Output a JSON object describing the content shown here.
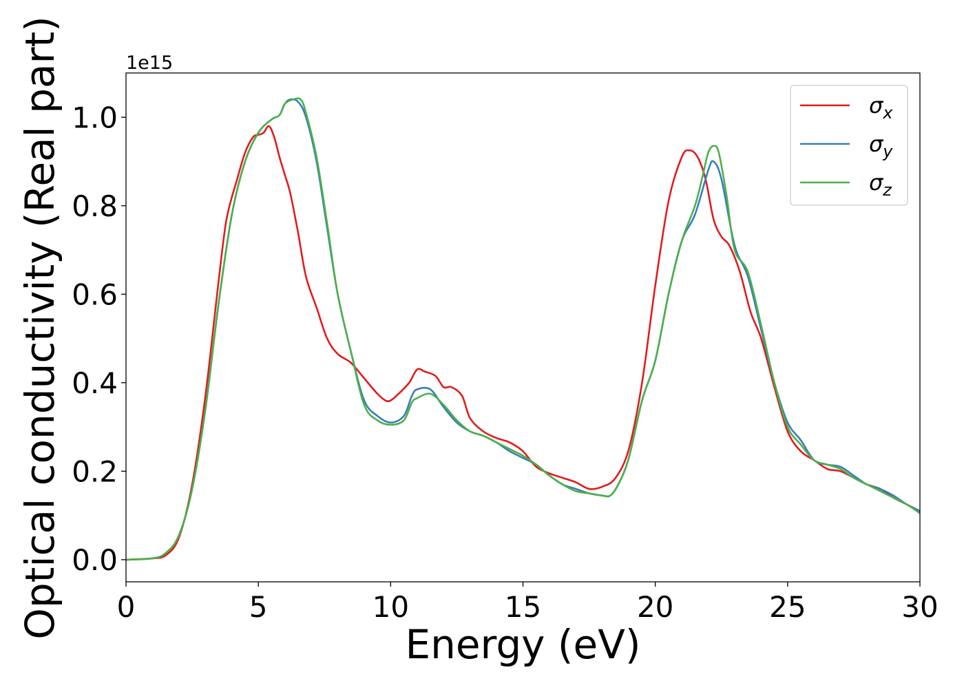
{
  "chart_data": {
    "type": "line",
    "title": "",
    "xlabel": "Energy (eV)",
    "ylabel": "Optical conductivity (Real part)",
    "y_offset_label": "1e15",
    "y_scale": 1000000000000000.0,
    "xlim": [
      0,
      30
    ],
    "ylim": [
      -0.05,
      1.1
    ],
    "grid": false,
    "legend_position": "top-right",
    "x_ticks": [
      0,
      5,
      10,
      15,
      20,
      25,
      30
    ],
    "x_tick_labels": [
      "0",
      "5",
      "10",
      "15",
      "20",
      "25",
      "30"
    ],
    "y_ticks": [
      0.0,
      0.2,
      0.4,
      0.6,
      0.8,
      1.0
    ],
    "y_tick_labels": [
      "0.0",
      "0.2",
      "0.4",
      "0.6",
      "0.8",
      "1.0"
    ],
    "series": [
      {
        "name": "σx",
        "base": "σ",
        "sub": "x",
        "color": "#e41a1c",
        "points": [
          [
            0,
            0.0
          ],
          [
            1,
            0.003
          ],
          [
            1.5,
            0.01
          ],
          [
            2,
            0.05
          ],
          [
            2.5,
            0.17
          ],
          [
            3,
            0.37
          ],
          [
            3.5,
            0.63
          ],
          [
            3.8,
            0.77
          ],
          [
            4.2,
            0.86
          ],
          [
            4.5,
            0.92
          ],
          [
            4.8,
            0.955
          ],
          [
            5.0,
            0.96
          ],
          [
            5.2,
            0.965
          ],
          [
            5.4,
            0.98
          ],
          [
            5.6,
            0.955
          ],
          [
            5.8,
            0.91
          ],
          [
            6.0,
            0.87
          ],
          [
            6.2,
            0.83
          ],
          [
            6.5,
            0.74
          ],
          [
            6.8,
            0.64
          ],
          [
            7.2,
            0.57
          ],
          [
            7.6,
            0.5
          ],
          [
            8.0,
            0.465
          ],
          [
            8.5,
            0.445
          ],
          [
            9.0,
            0.41
          ],
          [
            9.5,
            0.375
          ],
          [
            9.8,
            0.36
          ],
          [
            10.0,
            0.36
          ],
          [
            10.3,
            0.375
          ],
          [
            10.7,
            0.4
          ],
          [
            11.0,
            0.43
          ],
          [
            11.3,
            0.425
          ],
          [
            11.7,
            0.415
          ],
          [
            12.0,
            0.39
          ],
          [
            12.3,
            0.39
          ],
          [
            12.7,
            0.37
          ],
          [
            13.0,
            0.32
          ],
          [
            13.5,
            0.29
          ],
          [
            14.0,
            0.275
          ],
          [
            14.5,
            0.265
          ],
          [
            15.0,
            0.245
          ],
          [
            15.5,
            0.21
          ],
          [
            16.0,
            0.195
          ],
          [
            16.5,
            0.185
          ],
          [
            17.0,
            0.175
          ],
          [
            17.5,
            0.16
          ],
          [
            18.0,
            0.165
          ],
          [
            18.5,
            0.185
          ],
          [
            19.0,
            0.25
          ],
          [
            19.5,
            0.4
          ],
          [
            20.0,
            0.62
          ],
          [
            20.5,
            0.81
          ],
          [
            21.0,
            0.91
          ],
          [
            21.3,
            0.925
          ],
          [
            21.6,
            0.91
          ],
          [
            21.9,
            0.86
          ],
          [
            22.2,
            0.77
          ],
          [
            22.5,
            0.73
          ],
          [
            22.8,
            0.71
          ],
          [
            23.2,
            0.65
          ],
          [
            23.6,
            0.56
          ],
          [
            24.0,
            0.5
          ],
          [
            24.5,
            0.39
          ],
          [
            25.0,
            0.29
          ],
          [
            25.5,
            0.245
          ],
          [
            26.0,
            0.225
          ],
          [
            26.5,
            0.205
          ],
          [
            27.0,
            0.2
          ],
          [
            27.5,
            0.185
          ],
          [
            28.0,
            0.17
          ],
          [
            28.5,
            0.16
          ],
          [
            29.0,
            0.14
          ],
          [
            29.5,
            0.125
          ],
          [
            30,
            0.11
          ]
        ]
      },
      {
        "name": "σy",
        "base": "σ",
        "sub": "y",
        "color": "#377eb8",
        "points": [
          [
            0,
            0.0
          ],
          [
            1,
            0.003
          ],
          [
            1.5,
            0.015
          ],
          [
            2,
            0.055
          ],
          [
            2.5,
            0.16
          ],
          [
            3,
            0.34
          ],
          [
            3.5,
            0.58
          ],
          [
            4.0,
            0.78
          ],
          [
            4.5,
            0.9
          ],
          [
            5.0,
            0.965
          ],
          [
            5.5,
            0.995
          ],
          [
            5.8,
            1.005
          ],
          [
            6.0,
            1.03
          ],
          [
            6.2,
            1.04
          ],
          [
            6.5,
            1.035
          ],
          [
            6.8,
            1.0
          ],
          [
            7.2,
            0.9
          ],
          [
            7.6,
            0.75
          ],
          [
            8.0,
            0.6
          ],
          [
            8.5,
            0.47
          ],
          [
            9.0,
            0.36
          ],
          [
            9.5,
            0.325
          ],
          [
            10.0,
            0.31
          ],
          [
            10.5,
            0.325
          ],
          [
            10.8,
            0.37
          ],
          [
            11.0,
            0.385
          ],
          [
            11.5,
            0.385
          ],
          [
            12.0,
            0.345
          ],
          [
            12.5,
            0.31
          ],
          [
            13.0,
            0.29
          ],
          [
            13.5,
            0.28
          ],
          [
            14.0,
            0.265
          ],
          [
            14.5,
            0.245
          ],
          [
            15.0,
            0.23
          ],
          [
            15.5,
            0.215
          ],
          [
            16.0,
            0.19
          ],
          [
            16.5,
            0.17
          ],
          [
            17.0,
            0.16
          ],
          [
            17.5,
            0.15
          ],
          [
            18.0,
            0.145
          ],
          [
            18.3,
            0.145
          ],
          [
            18.6,
            0.17
          ],
          [
            19.0,
            0.23
          ],
          [
            19.5,
            0.36
          ],
          [
            20.0,
            0.45
          ],
          [
            20.5,
            0.6
          ],
          [
            21.0,
            0.72
          ],
          [
            21.5,
            0.78
          ],
          [
            22.0,
            0.88
          ],
          [
            22.2,
            0.9
          ],
          [
            22.5,
            0.86
          ],
          [
            23.0,
            0.71
          ],
          [
            23.5,
            0.64
          ],
          [
            24.0,
            0.52
          ],
          [
            24.5,
            0.4
          ],
          [
            25.0,
            0.31
          ],
          [
            25.5,
            0.27
          ],
          [
            26.0,
            0.225
          ],
          [
            26.5,
            0.215
          ],
          [
            27.0,
            0.21
          ],
          [
            27.5,
            0.19
          ],
          [
            28.0,
            0.17
          ],
          [
            28.5,
            0.16
          ],
          [
            29.0,
            0.145
          ],
          [
            29.5,
            0.125
          ],
          [
            30,
            0.11
          ]
        ]
      },
      {
        "name": "σz",
        "base": "σ",
        "sub": "z",
        "color": "#4daf4a",
        "points": [
          [
            0,
            0.0
          ],
          [
            1,
            0.003
          ],
          [
            1.5,
            0.015
          ],
          [
            2,
            0.055
          ],
          [
            2.5,
            0.16
          ],
          [
            3,
            0.34
          ],
          [
            3.5,
            0.58
          ],
          [
            4.0,
            0.78
          ],
          [
            4.5,
            0.9
          ],
          [
            5.0,
            0.965
          ],
          [
            5.5,
            0.995
          ],
          [
            5.8,
            1.005
          ],
          [
            6.0,
            1.03
          ],
          [
            6.3,
            1.04
          ],
          [
            6.6,
            1.04
          ],
          [
            6.8,
            1.01
          ],
          [
            7.2,
            0.91
          ],
          [
            7.6,
            0.76
          ],
          [
            8.0,
            0.6
          ],
          [
            8.5,
            0.47
          ],
          [
            9.0,
            0.35
          ],
          [
            9.5,
            0.315
          ],
          [
            10.0,
            0.305
          ],
          [
            10.5,
            0.315
          ],
          [
            10.8,
            0.355
          ],
          [
            11.0,
            0.365
          ],
          [
            11.5,
            0.375
          ],
          [
            12.0,
            0.35
          ],
          [
            12.5,
            0.315
          ],
          [
            13.0,
            0.29
          ],
          [
            13.5,
            0.28
          ],
          [
            14.0,
            0.265
          ],
          [
            14.5,
            0.25
          ],
          [
            15.0,
            0.235
          ],
          [
            15.5,
            0.215
          ],
          [
            16.0,
            0.19
          ],
          [
            16.5,
            0.17
          ],
          [
            17.0,
            0.155
          ],
          [
            17.5,
            0.15
          ],
          [
            18.0,
            0.145
          ],
          [
            18.3,
            0.145
          ],
          [
            18.6,
            0.17
          ],
          [
            19.0,
            0.23
          ],
          [
            19.5,
            0.36
          ],
          [
            20.0,
            0.45
          ],
          [
            20.5,
            0.6
          ],
          [
            21.0,
            0.72
          ],
          [
            21.5,
            0.8
          ],
          [
            21.8,
            0.87
          ],
          [
            22.0,
            0.92
          ],
          [
            22.2,
            0.935
          ],
          [
            22.4,
            0.92
          ],
          [
            22.7,
            0.82
          ],
          [
            23.0,
            0.7
          ],
          [
            23.5,
            0.65
          ],
          [
            24.0,
            0.53
          ],
          [
            24.5,
            0.4
          ],
          [
            25.0,
            0.3
          ],
          [
            25.5,
            0.26
          ],
          [
            26.0,
            0.225
          ],
          [
            26.5,
            0.215
          ],
          [
            27.0,
            0.205
          ],
          [
            27.5,
            0.185
          ],
          [
            28.0,
            0.17
          ],
          [
            28.5,
            0.155
          ],
          [
            29.0,
            0.14
          ],
          [
            29.5,
            0.125
          ],
          [
            30,
            0.105
          ]
        ]
      }
    ]
  }
}
